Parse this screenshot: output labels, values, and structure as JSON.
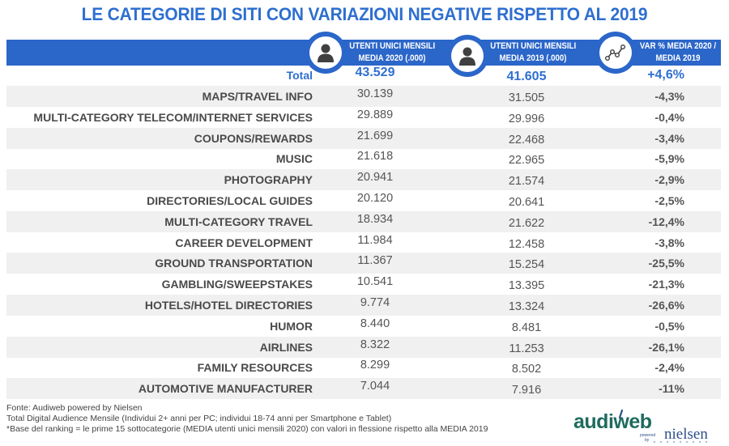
{
  "title": "LE CATEGORIE DI SITI CON VARIAZIONI NEGATIVE RISPETTO AL 2019",
  "header": {
    "col1_line1": "UTENTI UNICI  MENSILI",
    "col1_line2": "MEDIA 2020 (.000)",
    "col1_icon": "person-icon",
    "col2_line1": "UTENTI UNICI MENSILI",
    "col2_line2": "MEDIA 2019 (.000)",
    "col2_icon": "person-icon",
    "col3_line1": "VAR % MEDIA 2020 /",
    "col3_line2": "MEDIA 2019",
    "col3_icon": "line-chart-icon"
  },
  "total": {
    "label": "Total",
    "media2020": "43.529",
    "media2019": "41.605",
    "var": "+4,6%"
  },
  "rows": [
    {
      "label": "MAPS/TRAVEL INFO",
      "media2020": "30.139",
      "media2019": "31.505",
      "var": "-4,3%"
    },
    {
      "label": "MULTI-CATEGORY TELECOM/INTERNET SERVICES",
      "media2020": "29.889",
      "media2019": "29.996",
      "var": "-0,4%"
    },
    {
      "label": "COUPONS/REWARDS",
      "media2020": "21.699",
      "media2019": "22.468",
      "var": "-3,4%"
    },
    {
      "label": "MUSIC",
      "media2020": "21.618",
      "media2019": "22.965",
      "var": "-5,9%"
    },
    {
      "label": "PHOTOGRAPHY",
      "media2020": "20.941",
      "media2019": "21.574",
      "var": "-2,9%"
    },
    {
      "label": "DIRECTORIES/LOCAL GUIDES",
      "media2020": "20.120",
      "media2019": "20.641",
      "var": "-2,5%"
    },
    {
      "label": "MULTI-CATEGORY TRAVEL",
      "media2020": "18.934",
      "media2019": "21.622",
      "var": "-12,4%"
    },
    {
      "label": "CAREER DEVELOPMENT",
      "media2020": "11.984",
      "media2019": "12.458",
      "var": "-3,8%"
    },
    {
      "label": "GROUND TRANSPORTATION",
      "media2020": "11.367",
      "media2019": "15.254",
      "var": "-25,5%"
    },
    {
      "label": "GAMBLING/SWEEPSTAKES",
      "media2020": "10.541",
      "media2019": "13.395",
      "var": "-21,3%"
    },
    {
      "label": "HOTELS/HOTEL DIRECTORIES",
      "media2020": "9.774",
      "media2019": "13.324",
      "var": "-26,6%"
    },
    {
      "label": "HUMOR",
      "media2020": "8.440",
      "media2019": "8.481",
      "var": "-0,5%"
    },
    {
      "label": "AIRLINES",
      "media2020": "8.322",
      "media2019": "11.253",
      "var": "-26,1%"
    },
    {
      "label": "FAMILY RESOURCES",
      "media2020": "8.299",
      "media2019": "8.502",
      "var": "-2,4%"
    },
    {
      "label": "AUTOMOTIVE MANUFACTURER",
      "media2020": "7.044",
      "media2019": "7.916",
      "var": "-11%"
    }
  ],
  "footer": {
    "line1": "Fonte: Audiweb powered by Nielsen",
    "line2": "Total Digital Audience Mensile (Individui 2+ anni per PC; individui 18-74 anni per Smartphone e Tablet)",
    "line3": "*Base del ranking = le prime 15 sottocategorie (MEDIA utenti unici mensili 2020) con valori in flessione rispetto alla MEDIA 2019"
  },
  "logo": {
    "brand": "audiweb",
    "powered": "powered",
    "by": "by",
    "partner": "nielsen"
  },
  "colors": {
    "accent": "#2B66C9",
    "title": "#2E6FD0",
    "shade": "#F0F0F0",
    "logo_green": "#1E6B5E",
    "logo_blue": "#2C4F8A"
  }
}
